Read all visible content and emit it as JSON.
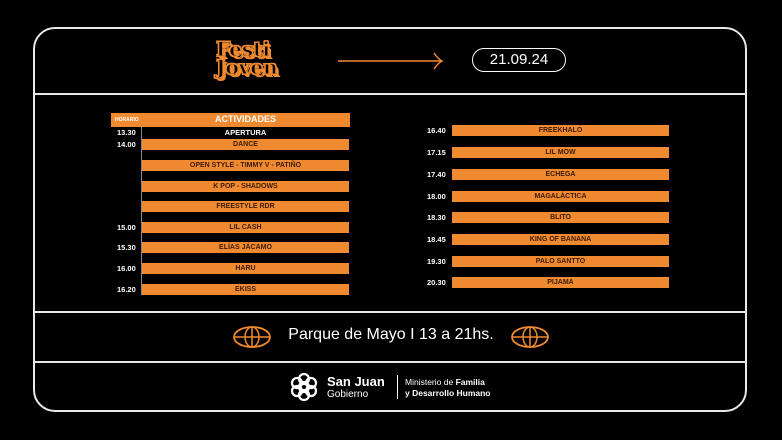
{
  "header": {
    "logo": [
      "Festi",
      "Joven"
    ],
    "date": "21.09.24",
    "accent": "#f08a30"
  },
  "schedule": {
    "col_time": "HORARIO",
    "col_activity": "ACTIVIDADES",
    "opening": {
      "time": "13.30",
      "label": "APERTURA"
    },
    "left": [
      {
        "time": "14.00",
        "label": "DANCE"
      },
      {
        "time": "",
        "label": "OPEN STYLE - TIMMY V - PATIÑO"
      },
      {
        "time": "",
        "label": "K POP - SHADOWS"
      },
      {
        "time": "",
        "label": "FREESTYLE RDR"
      },
      {
        "time": "15.00",
        "label": "LIL CASH"
      },
      {
        "time": "15.30",
        "label": "ELÍAS JÁCAMO"
      },
      {
        "time": "16.00",
        "label": "HARU"
      },
      {
        "time": "16.20",
        "label": "EKISS"
      }
    ],
    "right": [
      {
        "time": "16.40",
        "label": "FREEKHALO"
      },
      {
        "time": "17.15",
        "label": "LIL MOW"
      },
      {
        "time": "17.40",
        "label": "ECHEGA"
      },
      {
        "time": "18.00",
        "label": "MAGALÁCTICA"
      },
      {
        "time": "18.30",
        "label": "BLITO"
      },
      {
        "time": "18.45",
        "label": "KING OF BANANA"
      },
      {
        "time": "19.30",
        "label": "PALO SANTTO"
      },
      {
        "time": "20.30",
        "label": "PIJAMA"
      }
    ]
  },
  "venue": "Parque de Mayo I 13 a 21hs.",
  "footer": {
    "brand": "San Juan",
    "brand_sub": "Gobierno",
    "ministry_1": "Ministerio de",
    "ministry_1b": "Familia",
    "ministry_2": "y Desarrollo Humano"
  }
}
